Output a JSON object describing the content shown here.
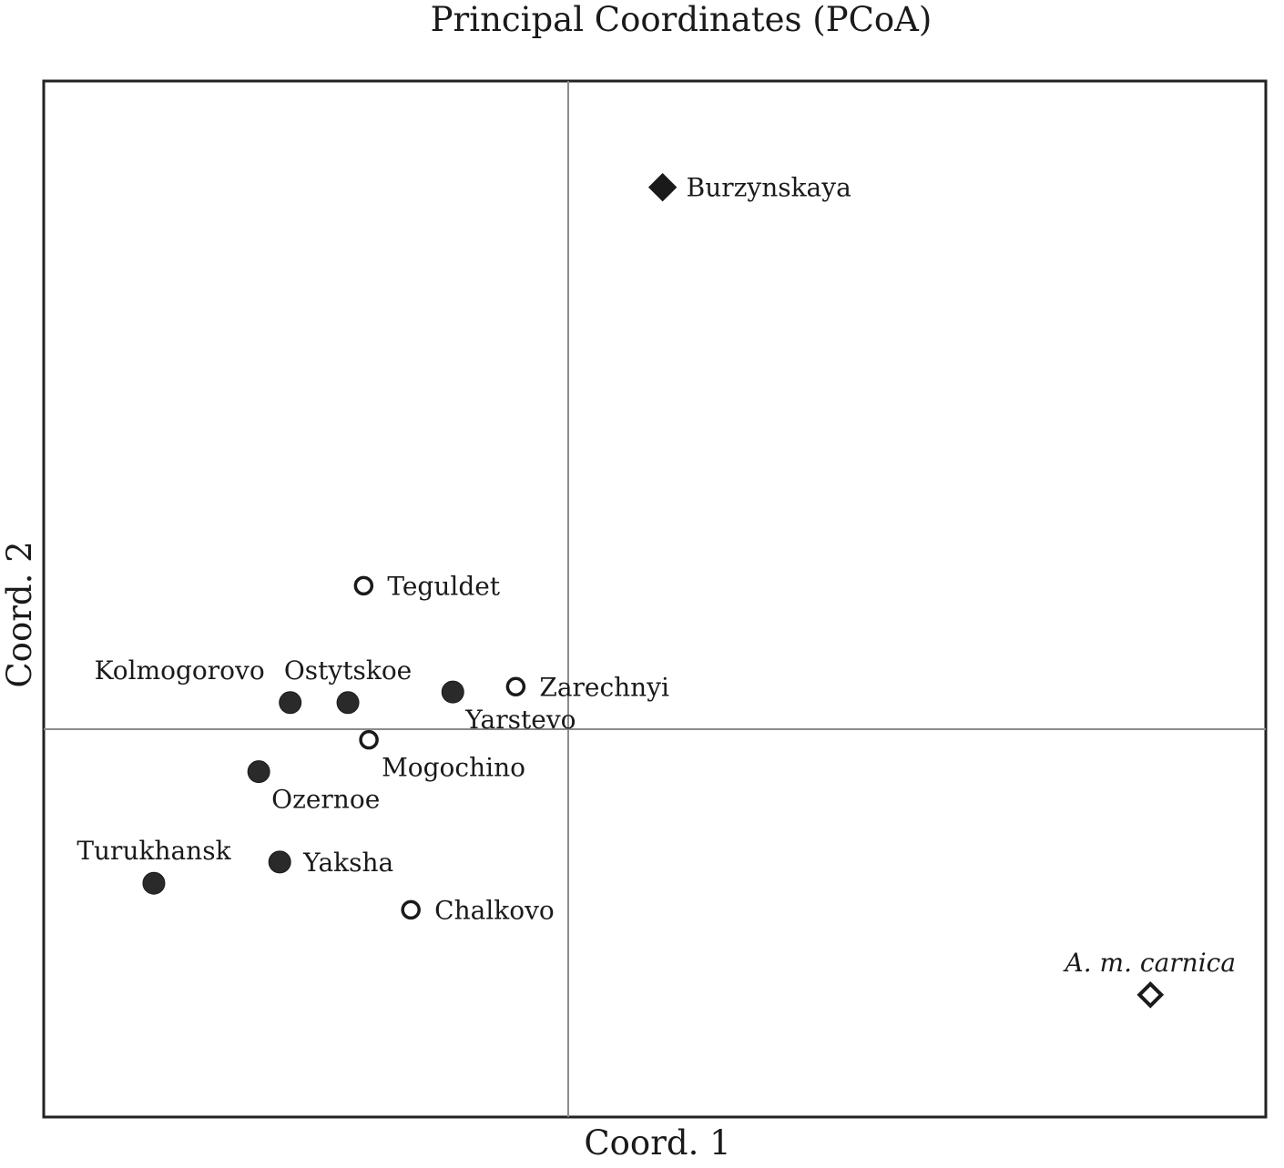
{
  "chart_data": {
    "type": "scatter",
    "title": "Principal Coordinates (PCoA)",
    "xlabel": "Coord. 1",
    "ylabel": "Coord. 2",
    "xlim": [
      -1.0,
      1.33
    ],
    "ylim": [
      -0.73,
      1.22
    ],
    "grid": false,
    "reference_lines": {
      "x": 0,
      "y": 0
    },
    "legend": "none",
    "points": [
      {
        "label": "Burzynskaya",
        "x": 0.18,
        "y": 1.02,
        "marker": "diamond",
        "fill": "filled",
        "label_pos": "right"
      },
      {
        "label": "Teguldet",
        "x": -0.39,
        "y": 0.27,
        "marker": "circle",
        "fill": "open",
        "label_pos": "right"
      },
      {
        "label": "Kolmogorovo",
        "x": -0.53,
        "y": 0.05,
        "marker": "circle",
        "fill": "filled",
        "label_pos": "above-left"
      },
      {
        "label": "Ostytskoe",
        "x": -0.42,
        "y": 0.05,
        "marker": "circle",
        "fill": "filled",
        "label_pos": "above"
      },
      {
        "label": "Yarstevo",
        "x": -0.22,
        "y": 0.07,
        "marker": "circle",
        "fill": "filled",
        "label_pos": "below-right"
      },
      {
        "label": "Zarechnyi",
        "x": -0.1,
        "y": 0.08,
        "marker": "circle",
        "fill": "open",
        "label_pos": "right"
      },
      {
        "label": "Mogochino",
        "x": -0.38,
        "y": -0.02,
        "marker": "circle",
        "fill": "open",
        "label_pos": "below-right"
      },
      {
        "label": "Ozernoe",
        "x": -0.59,
        "y": -0.08,
        "marker": "circle",
        "fill": "filled",
        "label_pos": "below-right"
      },
      {
        "label": "Turukhansk",
        "x": -0.79,
        "y": -0.29,
        "marker": "circle",
        "fill": "filled",
        "label_pos": "above"
      },
      {
        "label": "Yaksha",
        "x": -0.55,
        "y": -0.25,
        "marker": "circle",
        "fill": "filled",
        "label_pos": "right"
      },
      {
        "label": "Chalkovo",
        "x": -0.3,
        "y": -0.34,
        "marker": "circle",
        "fill": "open",
        "label_pos": "right"
      },
      {
        "label": "A. m. carnica",
        "x": 1.11,
        "y": -0.5,
        "marker": "diamond",
        "fill": "open",
        "label_pos": "above",
        "italic": true
      }
    ]
  }
}
